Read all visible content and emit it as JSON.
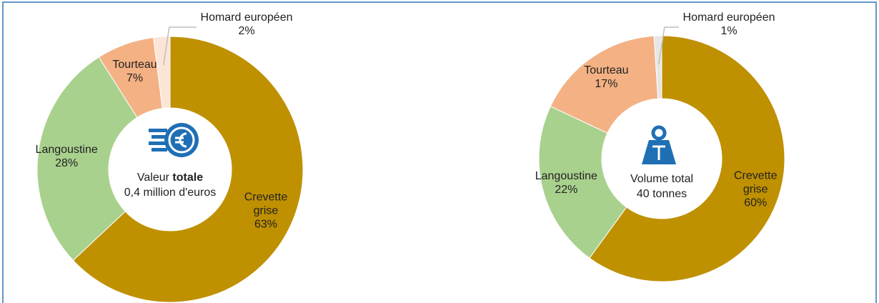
{
  "chart_data": [
    {
      "type": "pie",
      "hole": true,
      "categories": [
        "Crevette grise",
        "Langoustine",
        "Tourteau",
        "Homard européen"
      ],
      "values": [
        63,
        28,
        7,
        2
      ],
      "value_labels": [
        "63%",
        "28%",
        "7%",
        "2%"
      ],
      "colors": [
        "#bf9000",
        "#a9d18e",
        "#f4b183",
        "#fbe5d6"
      ],
      "center_text": "Valeur",
      "center_text_bold": "totale",
      "center_subtext": "0,4 million d'euros"
    },
    {
      "type": "pie",
      "hole": true,
      "categories": [
        "Crevette grise",
        "Langoustine",
        "Tourteau",
        "Homard européen"
      ],
      "values": [
        60,
        22,
        17,
        1
      ],
      "value_labels": [
        "60%",
        "22%",
        "17%",
        "1%"
      ],
      "colors": [
        "#bf9000",
        "#a9d18e",
        "#f4b183",
        "#e7e6e6"
      ],
      "center_text": "Volume total",
      "center_subtext": "40 tonnes"
    }
  ]
}
